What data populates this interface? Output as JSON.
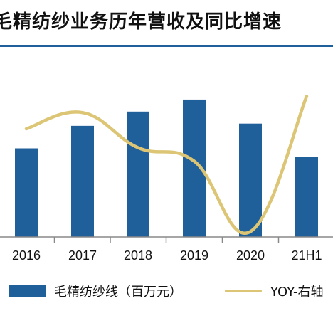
{
  "chart_data": {
    "type": "bar",
    "title": "毛精纺纱业务历年营收及同比增速",
    "categories": [
      "2016",
      "2017",
      "2018",
      "2019",
      "2020",
      "21H1"
    ],
    "series": [
      {
        "name": "毛精纺纱线（百万元）",
        "type": "bar",
        "axis": "left",
        "color": "#1f5f9a",
        "values": [
          118,
          148,
          167,
          183,
          151,
          107
        ]
      },
      {
        "name": "YOY-右轴",
        "type": "line",
        "axis": "right",
        "color": "#dcc676",
        "values": [
          0.2,
          0.26,
          0.13,
          0.08,
          -0.18,
          0.32
        ]
      }
    ],
    "ylim": [
      0,
      200
    ],
    "y2lim": [
      -0.2,
      0.4
    ],
    "grid": false,
    "legend_position": "bottom"
  }
}
